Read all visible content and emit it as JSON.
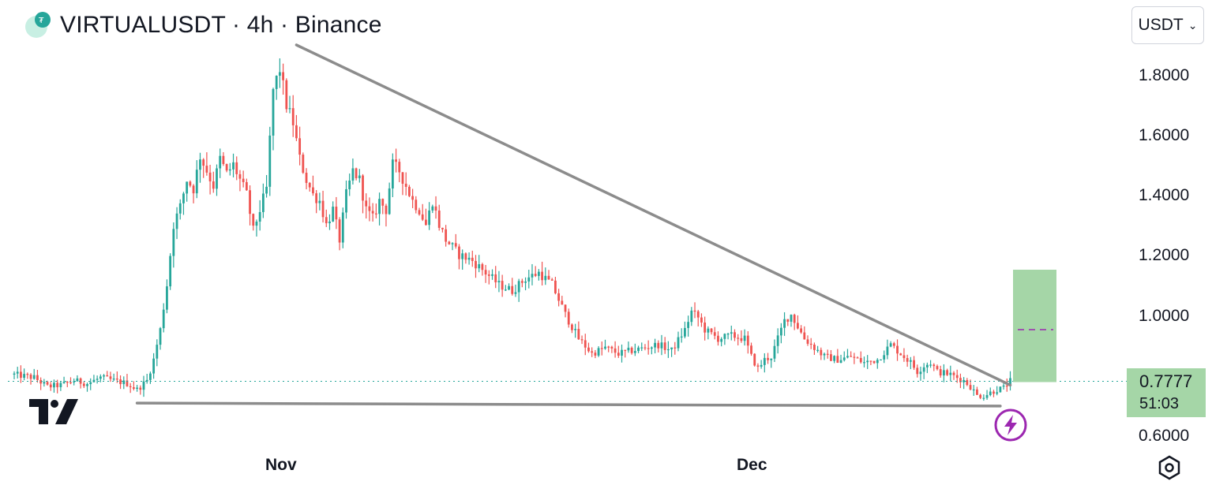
{
  "header": {
    "title": "VIRTUALUSDT · 4h · Binance",
    "currency_button": "USDT",
    "chevron_icon": "chevron-down-icon"
  },
  "price_label": {
    "price": "0.7777",
    "countdown": "51:03"
  },
  "colors": {
    "up": "#26a69a",
    "down": "#ef5350",
    "trendline": "#8c8c8c",
    "last_price_line": "#26a69a",
    "target_box": "#a5d6a7",
    "target_midline": "#9c27b0",
    "bolt_icon": "#9c27b0"
  },
  "chart_data": {
    "type": "candlestick",
    "title": "VIRTUALUSDT · 4h · Binance",
    "ylim": [
      0.545,
      1.98
    ],
    "y_ticks": [
      "1.8000",
      "1.6000",
      "1.4000",
      "1.2000",
      "1.0000",
      "0.6000"
    ],
    "x_ticks": [
      "Nov",
      "Dec"
    ],
    "last_price": 0.7777,
    "grid": false,
    "close_path_candle_index_price": [
      [
        0,
        0.8
      ],
      [
        6,
        0.79
      ],
      [
        10,
        0.76
      ],
      [
        14,
        0.765
      ],
      [
        18,
        0.78
      ],
      [
        22,
        0.77
      ],
      [
        26,
        0.79
      ],
      [
        30,
        0.78
      ],
      [
        34,
        0.77
      ],
      [
        37,
        0.75
      ],
      [
        40,
        0.78
      ],
      [
        42,
        0.85
      ],
      [
        44,
        0.95
      ],
      [
        46,
        1.1
      ],
      [
        48,
        1.3
      ],
      [
        50,
        1.36
      ],
      [
        52,
        1.45
      ],
      [
        54,
        1.42
      ],
      [
        56,
        1.53
      ],
      [
        58,
        1.48
      ],
      [
        60,
        1.43
      ],
      [
        62,
        1.52
      ],
      [
        64,
        1.47
      ],
      [
        66,
        1.5
      ],
      [
        68,
        1.45
      ],
      [
        70,
        1.4
      ],
      [
        72,
        1.28
      ],
      [
        74,
        1.35
      ],
      [
        76,
        1.42
      ],
      [
        78,
        1.75
      ],
      [
        80,
        1.82
      ],
      [
        82,
        1.7
      ],
      [
        84,
        1.64
      ],
      [
        86,
        1.52
      ],
      [
        88,
        1.45
      ],
      [
        90,
        1.4
      ],
      [
        92,
        1.38
      ],
      [
        94,
        1.3
      ],
      [
        96,
        1.35
      ],
      [
        98,
        1.25
      ],
      [
        100,
        1.4
      ],
      [
        102,
        1.48
      ],
      [
        104,
        1.45
      ],
      [
        106,
        1.35
      ],
      [
        108,
        1.32
      ],
      [
        110,
        1.38
      ],
      [
        112,
        1.35
      ],
      [
        114,
        1.5
      ],
      [
        116,
        1.48
      ],
      [
        118,
        1.43
      ],
      [
        120,
        1.38
      ],
      [
        122,
        1.35
      ],
      [
        124,
        1.3
      ],
      [
        126,
        1.38
      ],
      [
        128,
        1.3
      ],
      [
        130,
        1.25
      ],
      [
        134,
        1.2
      ],
      [
        138,
        1.18
      ],
      [
        142,
        1.14
      ],
      [
        146,
        1.1
      ],
      [
        150,
        1.08
      ],
      [
        154,
        1.12
      ],
      [
        158,
        1.14
      ],
      [
        162,
        1.1
      ],
      [
        166,
        1.0
      ],
      [
        170,
        0.92
      ],
      [
        174,
        0.87
      ],
      [
        178,
        0.89
      ],
      [
        182,
        0.87
      ],
      [
        186,
        0.88
      ],
      [
        190,
        0.89
      ],
      [
        194,
        0.9
      ],
      [
        198,
        0.88
      ],
      [
        202,
        0.95
      ],
      [
        204,
        1.01
      ],
      [
        206,
        0.99
      ],
      [
        208,
        0.95
      ],
      [
        212,
        0.92
      ],
      [
        216,
        0.93
      ],
      [
        220,
        0.92
      ],
      [
        222,
        0.86
      ],
      [
        224,
        0.82
      ],
      [
        226,
        0.85
      ],
      [
        228,
        0.86
      ],
      [
        230,
        0.92
      ],
      [
        232,
        0.98
      ],
      [
        234,
        1.0
      ],
      [
        236,
        0.96
      ],
      [
        238,
        0.92
      ],
      [
        240,
        0.9
      ],
      [
        244,
        0.86
      ],
      [
        248,
        0.85
      ],
      [
        252,
        0.86
      ],
      [
        256,
        0.84
      ],
      [
        260,
        0.85
      ],
      [
        264,
        0.9
      ],
      [
        266,
        0.88
      ],
      [
        268,
        0.86
      ],
      [
        270,
        0.84
      ],
      [
        272,
        0.81
      ],
      [
        274,
        0.83
      ],
      [
        276,
        0.84
      ],
      [
        278,
        0.81
      ],
      [
        282,
        0.8
      ],
      [
        286,
        0.78
      ],
      [
        288,
        0.76
      ],
      [
        290,
        0.73
      ],
      [
        292,
        0.73
      ],
      [
        294,
        0.74
      ],
      [
        296,
        0.75
      ],
      [
        298,
        0.755
      ],
      [
        300,
        0.778
      ]
    ],
    "trendlines": [
      {
        "name": "descending-resistance",
        "from": [
          85,
          1.9
        ],
        "to": [
          300,
          0.765
        ]
      },
      {
        "name": "horizontal-support",
        "from": [
          37,
          0.705
        ],
        "to": [
          297,
          0.695
        ]
      }
    ],
    "target_box": {
      "price_top": 1.15,
      "price_bottom": 0.775,
      "mid_price": 0.95
    }
  }
}
